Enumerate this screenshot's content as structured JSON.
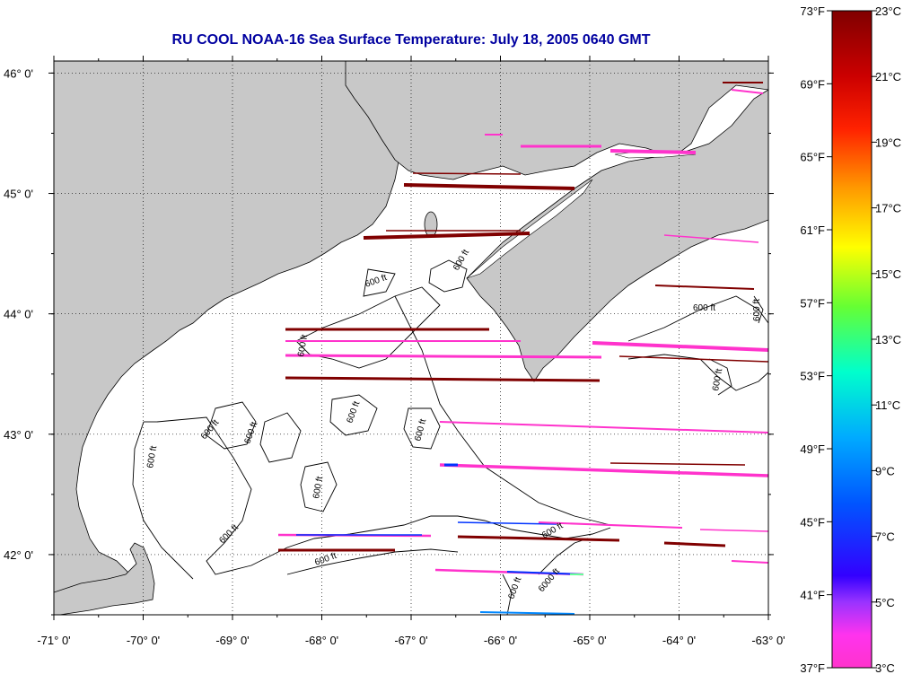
{
  "title": "RU COOL  NOAA-16  Sea Surface Temperature:  July 18, 2005 0640 GMT",
  "map": {
    "lon_range": [
      -71,
      -63
    ],
    "lat_range": [
      41.5,
      46.1
    ],
    "lat_ticks": [
      "46° 0'",
      "45° 0'",
      "44° 0'",
      "43° 0'",
      "42° 0'"
    ],
    "lon_ticks": [
      "-71° 0'",
      "-70° 0'",
      "-69° 0'",
      "-68° 0'",
      "-67° 0'",
      "-66° 0'",
      "-65° 0'",
      "-64° 0'",
      "-63° 0'"
    ],
    "contour_label": "600 ft",
    "contour_label_deep": "6000 ft",
    "land_color": "#c8c8c8",
    "grid": "dotted"
  },
  "colorbar": {
    "f_labels": [
      "73°F",
      "69°F",
      "65°F",
      "61°F",
      "57°F",
      "53°F",
      "49°F",
      "45°F",
      "41°F",
      "37°F"
    ],
    "c_labels": [
      "23°C",
      "21°C",
      "19°C",
      "17°C",
      "15°C",
      "13°C",
      "11°C",
      "9°C",
      "7°C",
      "5°C",
      "3°C"
    ],
    "range_c": [
      3,
      23
    ],
    "colors": [
      "#ff33cc",
      "#9933ff",
      "#0000ff",
      "#00aaff",
      "#00ffcc",
      "#66ff33",
      "#ffff00",
      "#ff9900",
      "#ff0000",
      "#cc0000",
      "#800000"
    ]
  }
}
